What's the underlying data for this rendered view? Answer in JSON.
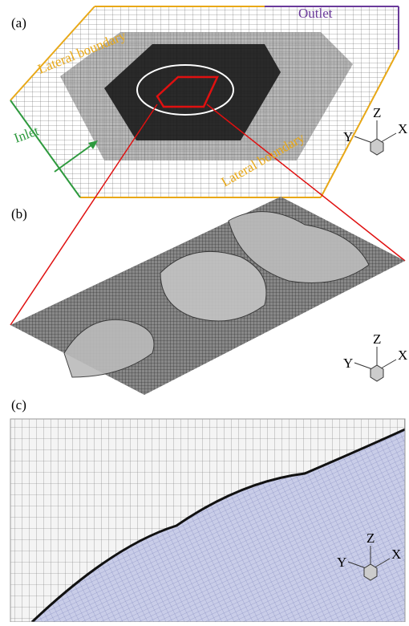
{
  "panels": [
    {
      "label": "(a)",
      "lateral_top": "Lateral boundary",
      "outlet": "Outlet",
      "inlet": "Inlet",
      "lateral_bottom": "Lateral boundary",
      "axes": {
        "z": "Z",
        "y": "Y",
        "x": "X"
      }
    },
    {
      "label": "(b)",
      "axes": {
        "z": "Z",
        "y": "Y",
        "x": "X"
      }
    },
    {
      "label": "(c)",
      "axes": {
        "z": "Z",
        "y": "Y",
        "x": "X"
      }
    }
  ]
}
